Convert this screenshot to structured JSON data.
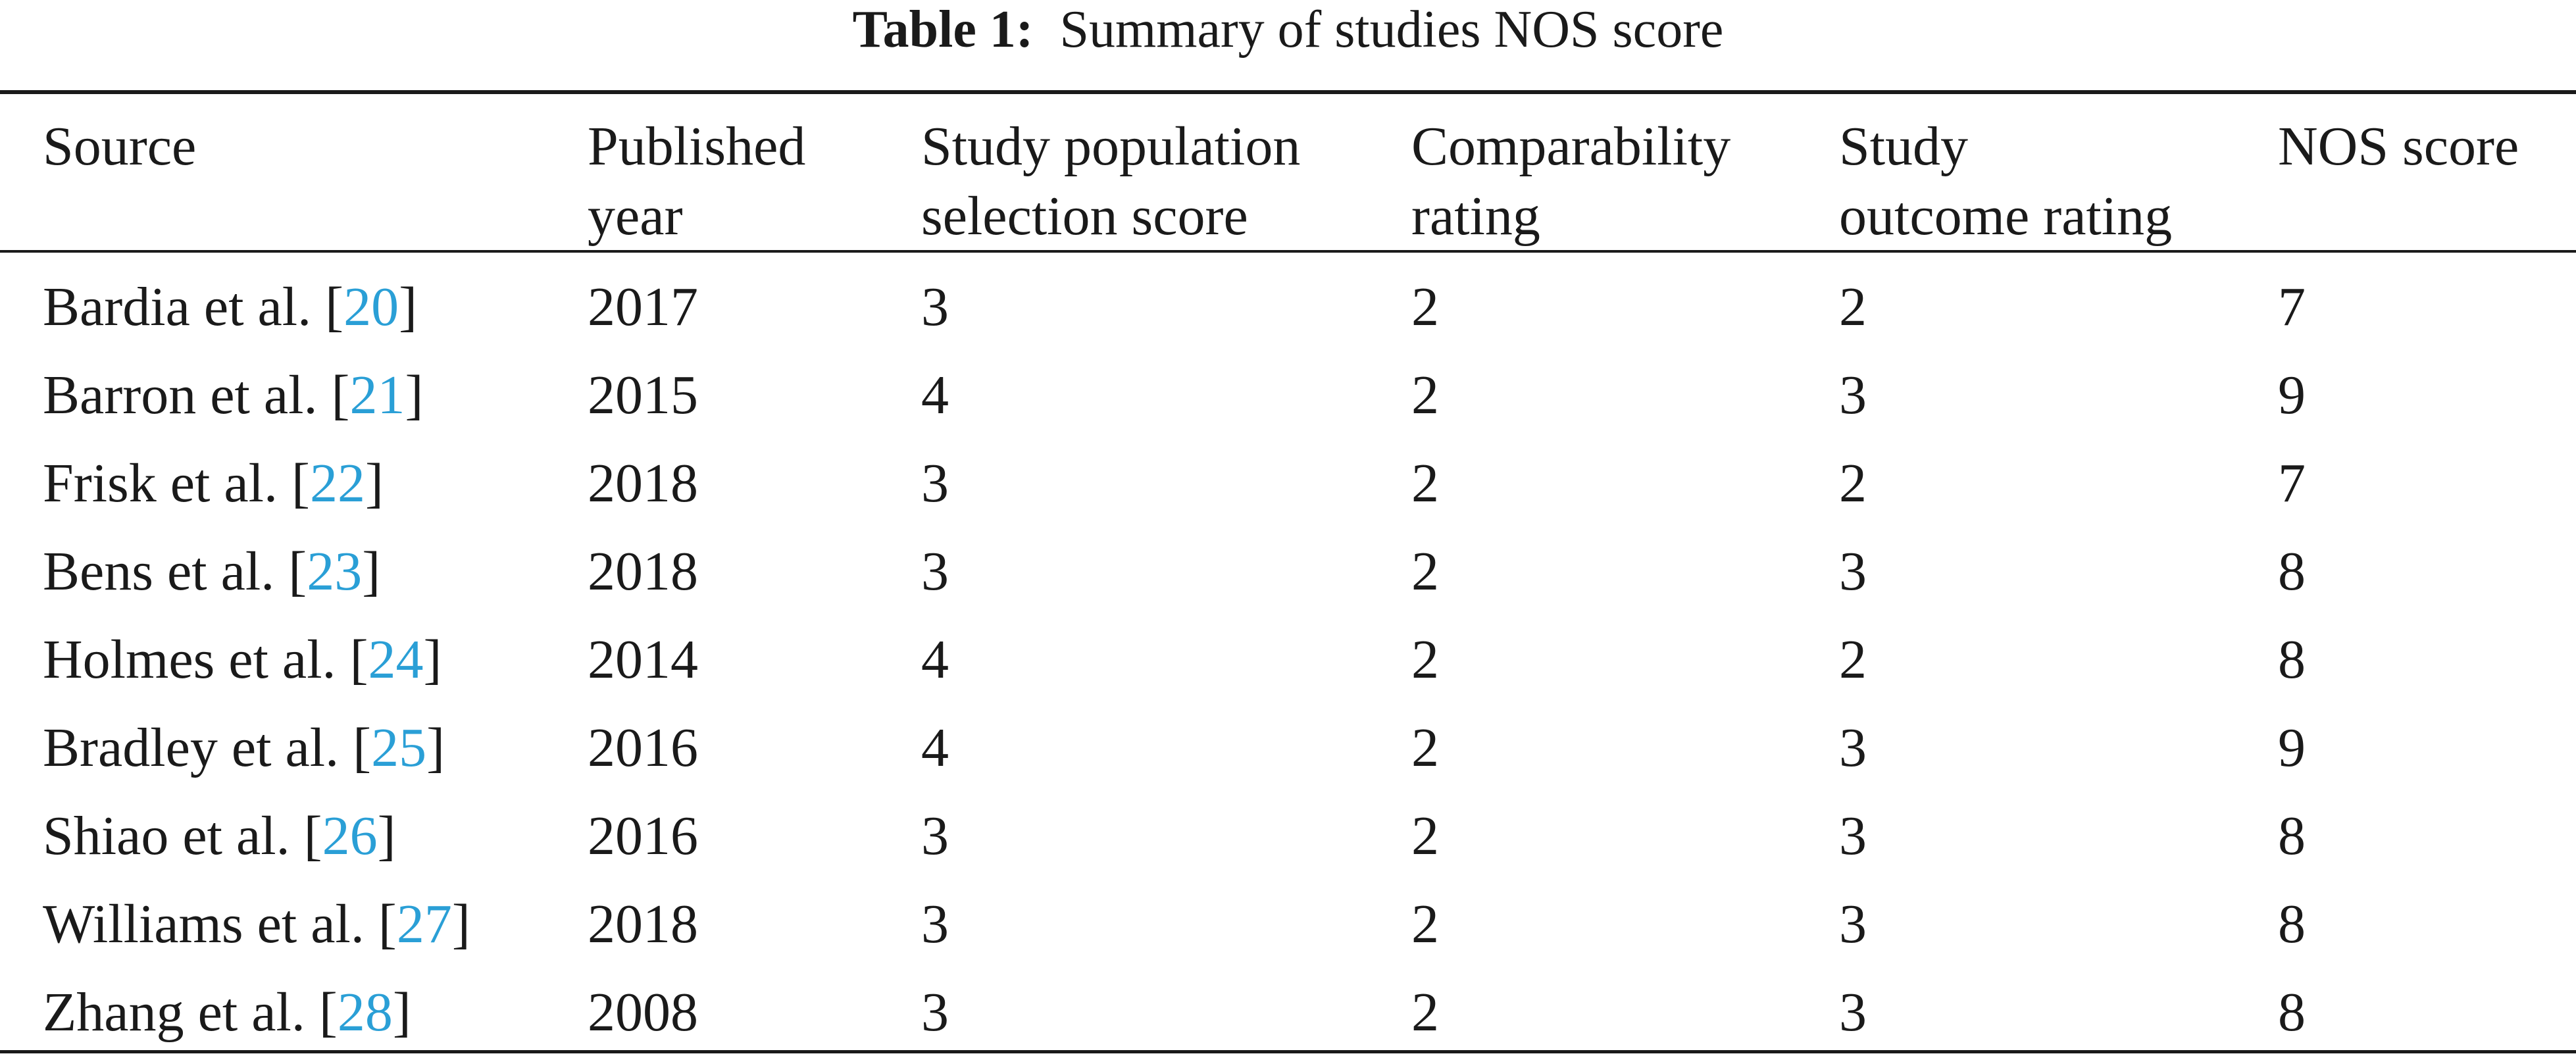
{
  "caption": {
    "label": "Table 1:",
    "text": "Summary of studies NOS score"
  },
  "table": {
    "headers": {
      "source": "Source",
      "year": "Published\nyear",
      "population": "Study population\nselection score",
      "comparability": "Comparability\nrating",
      "outcome": "Study\noutcome rating",
      "nos": "NOS score"
    },
    "rows": [
      {
        "source": "Bardia et al.",
        "ref": "20",
        "year": "2017",
        "population": "3",
        "comparability": "2",
        "outcome": "2",
        "nos": "7"
      },
      {
        "source": "Barron et al.",
        "ref": "21",
        "year": "2015",
        "population": "4",
        "comparability": "2",
        "outcome": "3",
        "nos": "9"
      },
      {
        "source": "Frisk et al.",
        "ref": "22",
        "year": "2018",
        "population": "3",
        "comparability": "2",
        "outcome": "2",
        "nos": "7"
      },
      {
        "source": "Bens et al.",
        "ref": "23",
        "year": "2018",
        "population": "3",
        "comparability": "2",
        "outcome": "3",
        "nos": "8"
      },
      {
        "source": "Holmes et al.",
        "ref": "24",
        "year": "2014",
        "population": "4",
        "comparability": "2",
        "outcome": "2",
        "nos": "8"
      },
      {
        "source": "Bradley et al.",
        "ref": "25",
        "year": "2016",
        "population": "4",
        "comparability": "2",
        "outcome": "3",
        "nos": "9"
      },
      {
        "source": "Shiao et al.",
        "ref": "26",
        "year": "2016",
        "population": "3",
        "comparability": "2",
        "outcome": "3",
        "nos": "8"
      },
      {
        "source": "Williams et al.",
        "ref": "27",
        "year": "2018",
        "population": "3",
        "comparability": "2",
        "outcome": "3",
        "nos": "8"
      },
      {
        "source": "Zhang et al.",
        "ref": "28",
        "year": "2008",
        "population": "3",
        "comparability": "2",
        "outcome": "3",
        "nos": "8"
      }
    ]
  },
  "colors": {
    "text": "#1a1a1a",
    "reference_link": "#2a9fd6"
  }
}
